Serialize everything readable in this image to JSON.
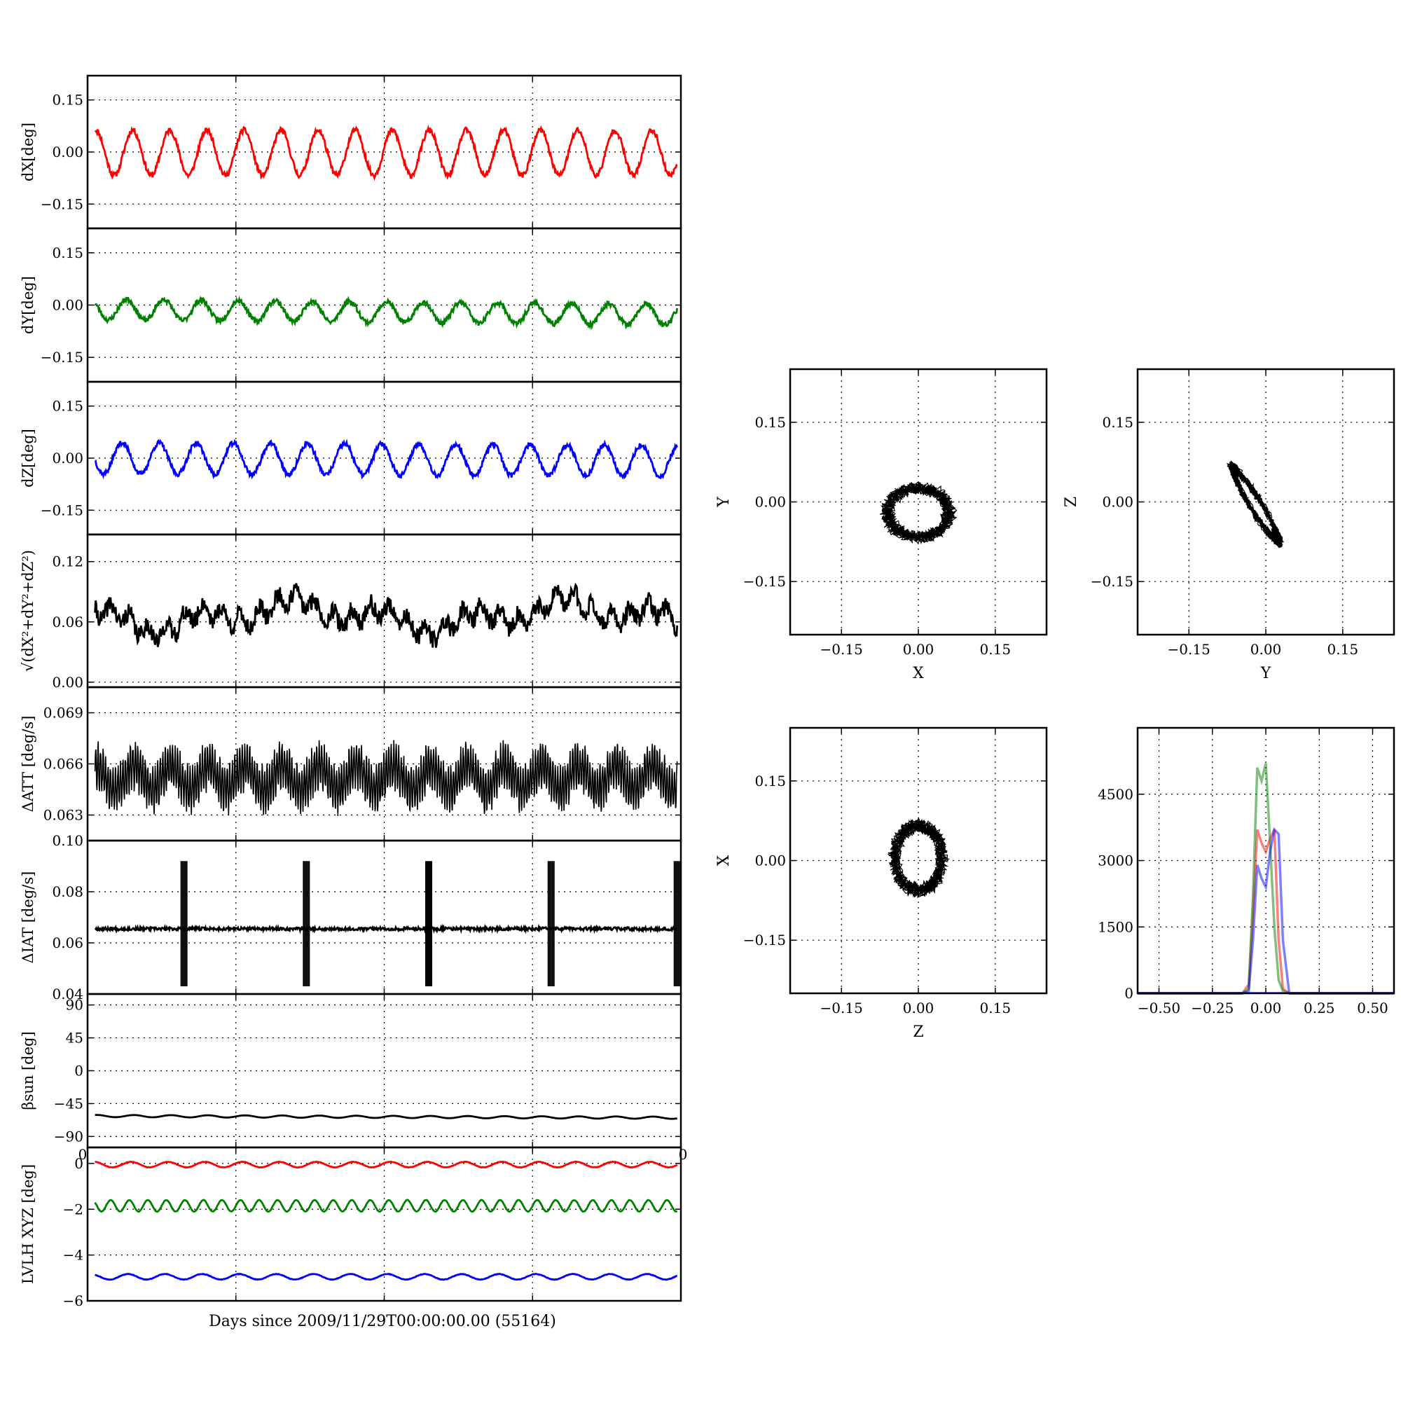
{
  "figure": {
    "xlabel": "Days since 2009/11/29T00:00:00.00 (55164)",
    "stray_tick_left": "0",
    "stray_tick_right": "0"
  },
  "chart_data": [
    {
      "id": "dx",
      "type": "line",
      "ylabel": "dX[deg]",
      "xlim": [
        0,
        16
      ],
      "ylim": [
        -0.22,
        0.22
      ],
      "yticks": [
        -0.15,
        0.0,
        0.15
      ],
      "yticklabels": [
        "−0.15",
        "0.00",
        "0.15"
      ],
      "xgrid": [
        4,
        8,
        12
      ],
      "series": [
        {
          "color": "#ff0000",
          "mean": -0.002,
          "amplitude": 0.065,
          "period_days": 1.0,
          "phase": 0.2,
          "noise": 0.008,
          "trend": 0.0,
          "seed": 11
        }
      ]
    },
    {
      "id": "dy",
      "type": "line",
      "ylabel": "dY[deg]",
      "xlim": [
        0,
        16
      ],
      "ylim": [
        -0.22,
        0.22
      ],
      "yticks": [
        -0.15,
        0.0,
        0.15
      ],
      "yticklabels": [
        "−0.15",
        "0.00",
        "0.15"
      ],
      "xgrid": [
        4,
        8,
        12
      ],
      "series": [
        {
          "color": "#008000",
          "mean": -0.012,
          "amplitude": 0.03,
          "period_days": 1.0,
          "phase": 1.2,
          "noise": 0.007,
          "trend": -0.001,
          "seed": 23
        }
      ]
    },
    {
      "id": "dz",
      "type": "line",
      "ylabel": "dZ[deg]",
      "xlim": [
        0,
        16
      ],
      "ylim": [
        -0.22,
        0.22
      ],
      "yticks": [
        -0.15,
        0.0,
        0.15
      ],
      "yticklabels": [
        "−0.15",
        "0.00",
        "0.15"
      ],
      "xgrid": [
        4,
        8,
        12
      ],
      "series": [
        {
          "color": "#0000ff",
          "mean": 0.0,
          "amplitude": 0.045,
          "period_days": 1.0,
          "phase": 2.0,
          "noise": 0.007,
          "trend": -0.0005,
          "seed": 37
        }
      ]
    },
    {
      "id": "dtot",
      "type": "line",
      "ylabel": "√(dX²+dY²+dZ²)",
      "xlim": [
        0,
        16
      ],
      "ylim": [
        -0.005,
        0.147
      ],
      "yticks": [
        0.0,
        0.06,
        0.12
      ],
      "yticklabels": [
        "0.00",
        "0.06",
        "0.12"
      ],
      "xgrid": [
        4,
        8,
        12
      ],
      "series": [
        {
          "color": "#000000",
          "mean": 0.066,
          "amplitude": 0.008,
          "period_days": 0.5,
          "phase": 0.0,
          "noise": 0.009,
          "trend": 0.0,
          "seed": 41
        }
      ]
    },
    {
      "id": "datt",
      "type": "line",
      "ylabel": "ΔATT [deg/s]",
      "xlim": [
        0,
        16
      ],
      "ylim": [
        0.0615,
        0.0705
      ],
      "yticks": [
        0.063,
        0.066,
        0.069
      ],
      "yticklabels": [
        "0.063",
        "0.066",
        "0.069"
      ],
      "xgrid": [
        4,
        8,
        12
      ],
      "series": [
        {
          "color": "#000000",
          "mean": 0.0652,
          "amplitude": 0.0012,
          "period_days": 0.067,
          "phase": 0.0,
          "noise": 0.0004,
          "trend": 0.0,
          "seed": 53
        }
      ]
    },
    {
      "id": "diat",
      "type": "line",
      "ylabel": "ΔIAT [deg/s]",
      "xlim": [
        0,
        16
      ],
      "ylim": [
        0.04,
        0.1
      ],
      "yticks": [
        0.04,
        0.06,
        0.08,
        0.1
      ],
      "yticklabels": [
        "0.04",
        "0.06",
        "0.08",
        "0.10"
      ],
      "xgrid": [
        4,
        8,
        12
      ],
      "series": [
        {
          "color": "#000000",
          "mean": 0.0655,
          "amplitude": 0.0,
          "period_days": 1.0,
          "phase": 0.0,
          "noise": 0.0006,
          "trend": 0.0,
          "seed": 67
        }
      ],
      "spike_days": [
        2.6,
        5.9,
        9.2,
        12.5,
        15.9
      ],
      "spike_range": [
        0.043,
        0.092
      ]
    },
    {
      "id": "beta",
      "type": "line",
      "ylabel": "βsun [deg]",
      "xlim": [
        0,
        16
      ],
      "ylim": [
        -105,
        105
      ],
      "yticks": [
        -90,
        -45,
        0,
        45,
        90
      ],
      "yticklabels": [
        "−90",
        "−45",
        "0",
        "45",
        "90"
      ],
      "xgrid": [
        4,
        8,
        12
      ],
      "series": [
        {
          "color": "#000000",
          "mean": -62,
          "amplitude": 1.5,
          "period_days": 1.0,
          "phase": 0.0,
          "noise": 0.0,
          "trend": -0.15,
          "seed": 71
        }
      ]
    },
    {
      "id": "lvlh",
      "type": "line",
      "ylabel": "LVLH XYZ [deg]",
      "xlim": [
        0,
        16
      ],
      "ylim": [
        -6.0,
        0.7
      ],
      "yticks": [
        -6,
        -4,
        -2,
        0
      ],
      "yticklabels": [
        "−6",
        "−4",
        "−2",
        "0"
      ],
      "xgrid": [
        4,
        8,
        12
      ],
      "series": [
        {
          "color": "#ff0000",
          "mean": -0.05,
          "amplitude": 0.12,
          "period_days": 1.0,
          "phase": 0.5,
          "noise": 0.01,
          "trend": 0.0,
          "seed": 83
        },
        {
          "color": "#008000",
          "mean": -1.85,
          "amplitude": 0.25,
          "period_days": 0.5,
          "phase": 0.0,
          "noise": 0.01,
          "trend": 0.0,
          "seed": 89
        },
        {
          "color": "#0000ff",
          "mean": -4.95,
          "amplitude": 0.12,
          "period_days": 1.0,
          "phase": 1.0,
          "noise": 0.01,
          "trend": 0.0,
          "seed": 97
        }
      ]
    },
    {
      "id": "xy",
      "type": "scatter",
      "xlabel": "X",
      "ylabel": "Y",
      "xlim": [
        -0.25,
        0.25
      ],
      "ylim": [
        -0.25,
        0.25
      ],
      "xticks": [
        -0.15,
        0.0,
        0.15
      ],
      "xticklabels": [
        "−0.15",
        "0.00",
        "0.15"
      ],
      "yticks": [
        -0.15,
        0.0,
        0.15
      ],
      "yticklabels": [
        "−0.15",
        "0.00",
        "0.15"
      ],
      "trace": {
        "cx": 0.0,
        "cy": -0.02,
        "rx": 0.065,
        "ry": 0.05,
        "tilt": 0.0,
        "noise": 0.01,
        "seed": 101
      }
    },
    {
      "id": "yz",
      "type": "scatter",
      "xlabel": "Y",
      "ylabel": "Z",
      "xlim": [
        -0.25,
        0.25
      ],
      "ylim": [
        -0.25,
        0.25
      ],
      "xticks": [
        -0.15,
        0.0,
        0.15
      ],
      "xticklabels": [
        "−0.15",
        "0.00",
        "0.15"
      ],
      "yticks": [
        -0.15,
        0.0,
        0.15
      ],
      "yticklabels": [
        "−0.15",
        "0.00",
        "0.15"
      ],
      "trace": {
        "cx": -0.02,
        "cy": -0.005,
        "rx": 0.085,
        "ry": 0.012,
        "tilt": -1.0,
        "noise": 0.008,
        "seed": 107
      }
    },
    {
      "id": "zx",
      "type": "scatter",
      "xlabel": "Z",
      "ylabel": "X",
      "xlim": [
        -0.25,
        0.25
      ],
      "ylim": [
        -0.25,
        0.25
      ],
      "xticks": [
        -0.15,
        0.0,
        0.15
      ],
      "xticklabels": [
        "−0.15",
        "0.00",
        "0.15"
      ],
      "yticks": [
        -0.15,
        0.0,
        0.15
      ],
      "yticklabels": [
        "−0.15",
        "0.00",
        "0.15"
      ],
      "trace": {
        "cx": 0.0,
        "cy": 0.005,
        "rx": 0.05,
        "ry": 0.065,
        "tilt": 0.0,
        "noise": 0.01,
        "seed": 113
      }
    },
    {
      "id": "hist",
      "type": "line",
      "xlim": [
        -0.6,
        0.6
      ],
      "ylim": [
        0,
        6000
      ],
      "xticks": [
        -0.5,
        -0.25,
        0.0,
        0.25,
        0.5
      ],
      "xticklabels": [
        "−0.50",
        "−0.25",
        "0.00",
        "0.25",
        "0.50"
      ],
      "yticks": [
        0,
        1500,
        3000,
        4500
      ],
      "yticklabels": [
        "0",
        "1500",
        "3000",
        "4500"
      ],
      "series": [
        {
          "color": "#ff0000",
          "bins": [
            -0.11,
            -0.08,
            -0.06,
            -0.04,
            -0.02,
            0.0,
            0.02,
            0.04,
            0.06,
            0.08,
            0.11
          ],
          "counts": [
            0,
            200,
            1800,
            3700,
            3400,
            3200,
            3500,
            3700,
            1200,
            100,
            0
          ]
        },
        {
          "color": "#008000",
          "bins": [
            -0.11,
            -0.08,
            -0.06,
            -0.04,
            -0.02,
            0.0,
            0.02,
            0.04,
            0.06,
            0.08,
            0.11
          ],
          "counts": [
            0,
            100,
            2200,
            5100,
            4800,
            5200,
            3400,
            1500,
            300,
            50,
            0
          ]
        },
        {
          "color": "#0000ff",
          "bins": [
            -0.11,
            -0.08,
            -0.06,
            -0.04,
            -0.02,
            0.0,
            0.02,
            0.04,
            0.06,
            0.08,
            0.11
          ],
          "counts": [
            0,
            50,
            1200,
            2900,
            2600,
            2400,
            3200,
            3700,
            3600,
            1200,
            0
          ]
        }
      ]
    }
  ]
}
